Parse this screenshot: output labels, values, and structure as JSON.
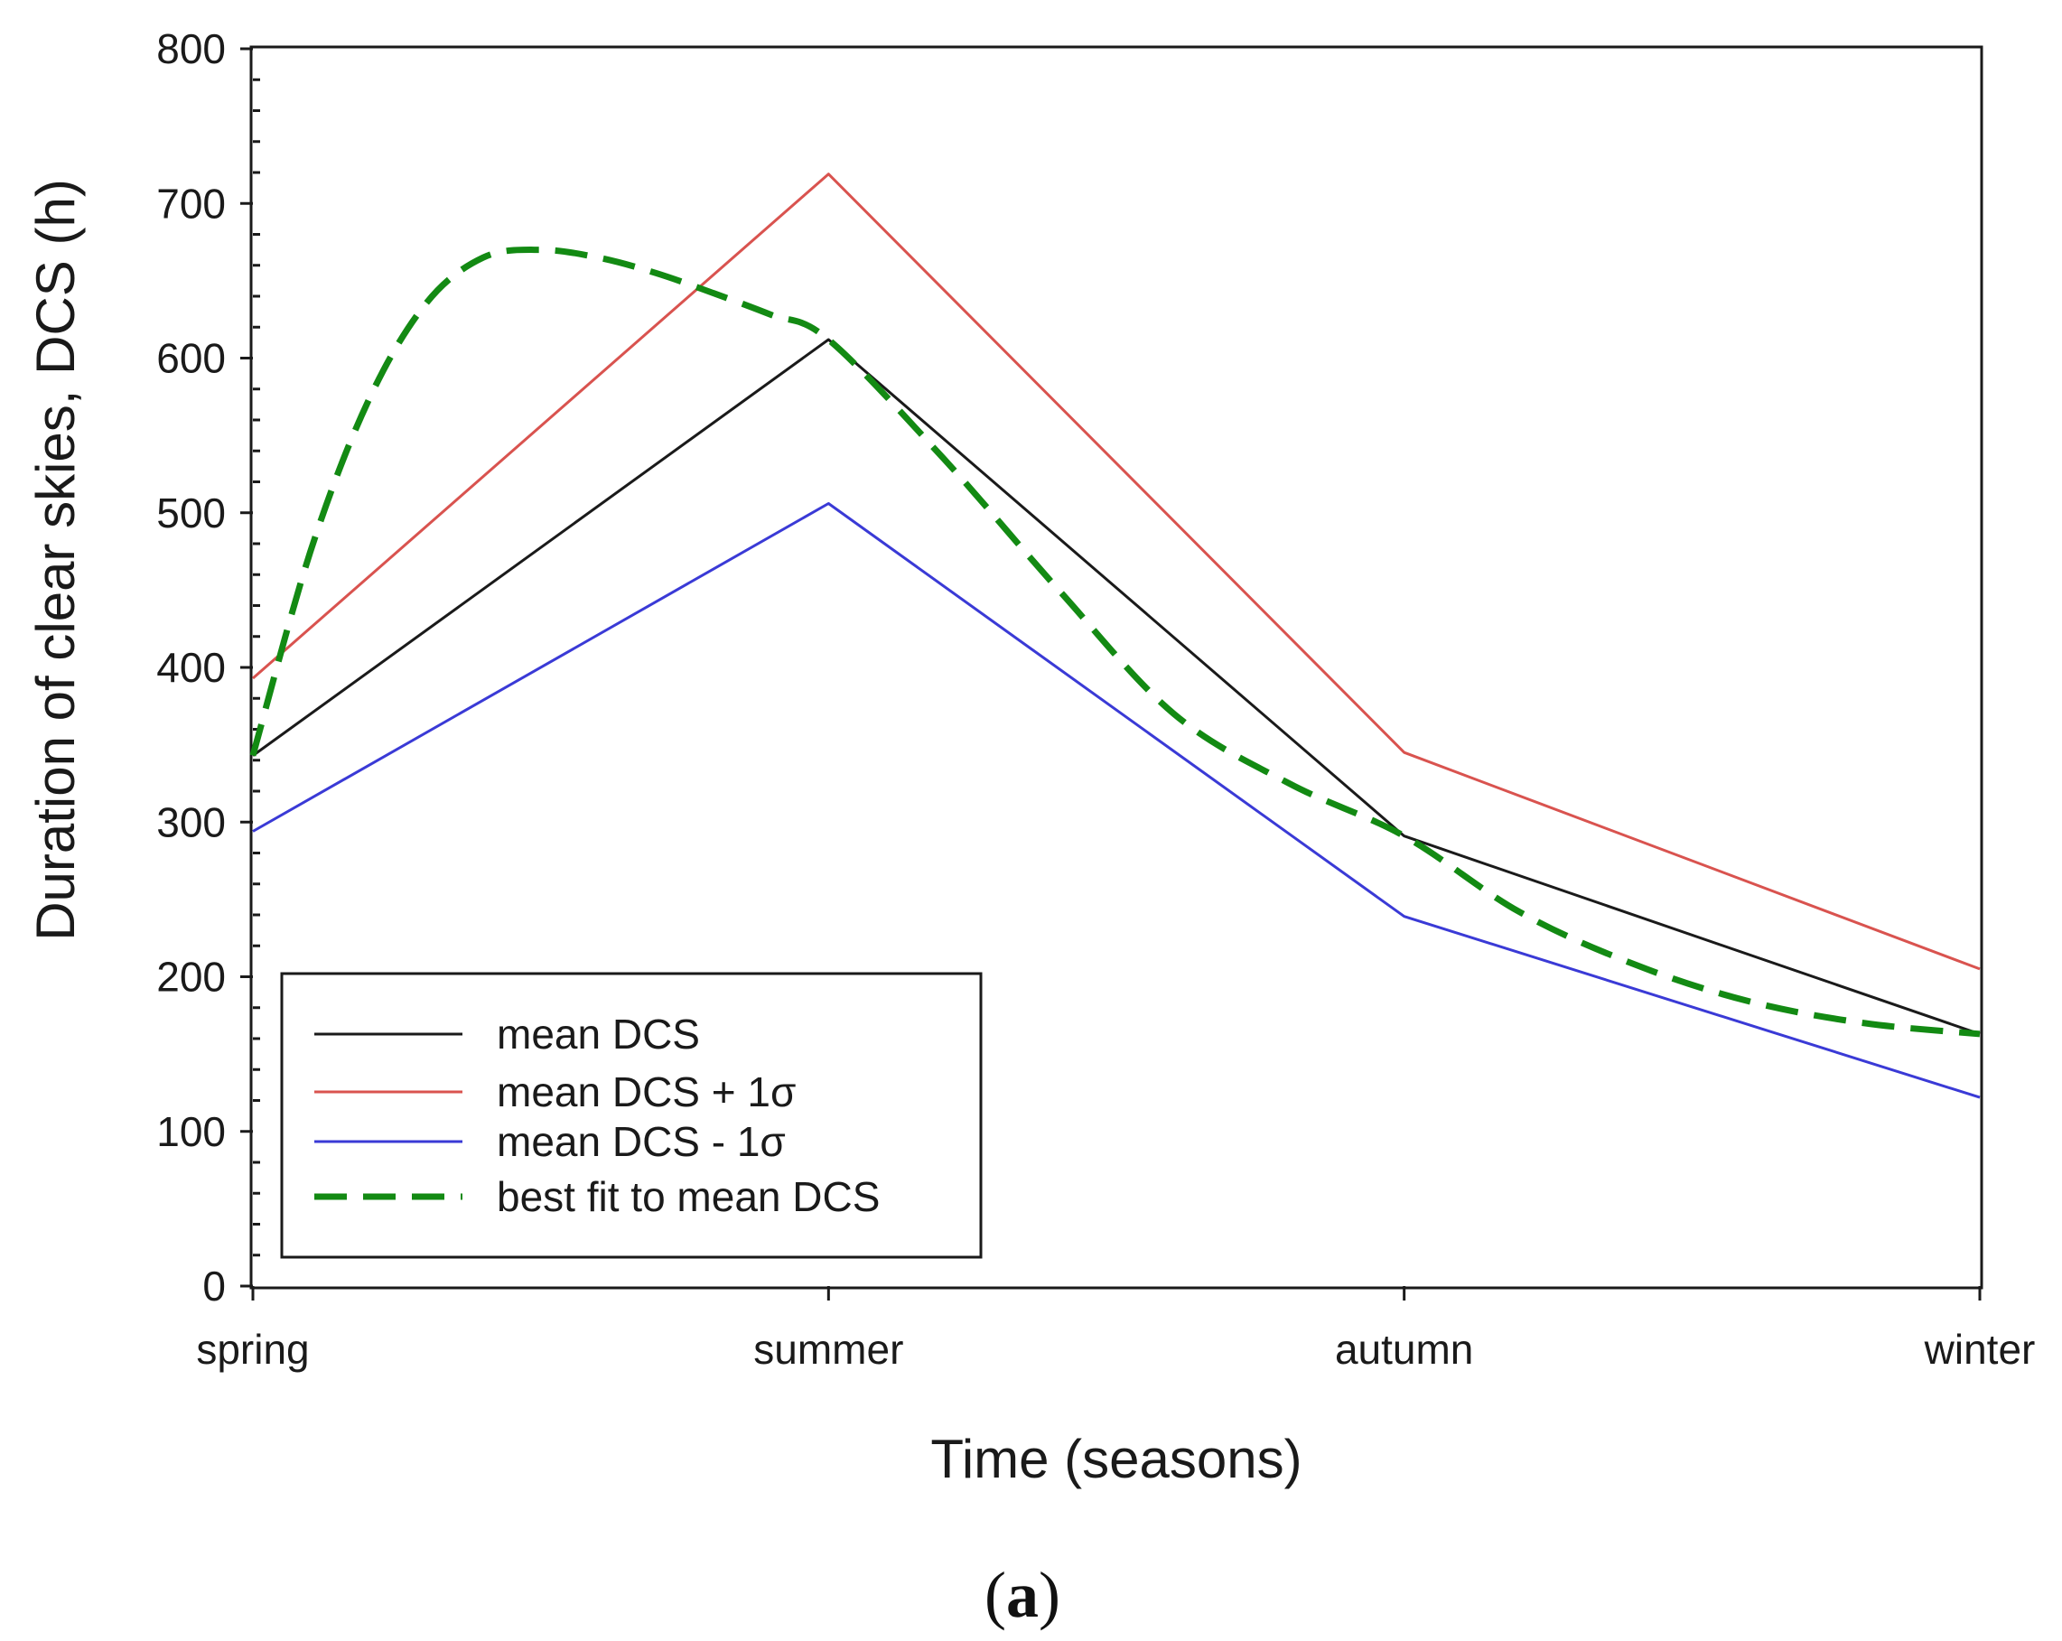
{
  "chart_data": {
    "type": "line",
    "title": "",
    "xlabel": "Time (seasons)",
    "ylabel": "Duration of clear skies, DCS (h)",
    "categories": [
      "spring",
      "summer",
      "autumn",
      "winter"
    ],
    "ylim": [
      0,
      800
    ],
    "yticks": [
      "0",
      "100",
      "200",
      "300",
      "400",
      "500",
      "600",
      "700",
      "800"
    ],
    "series": [
      {
        "name": "mean DCS",
        "color": "#1a1a1a",
        "style": "solid",
        "values": [
          343,
          612,
          291,
          163
        ]
      },
      {
        "name": "mean DCS + 1σ",
        "color": "#d9534f",
        "style": "solid",
        "values": [
          393,
          719,
          345,
          205
        ]
      },
      {
        "name": "mean DCS - 1σ",
        "color": "#3a3ad6",
        "style": "solid",
        "values": [
          294,
          506,
          239,
          122
        ]
      },
      {
        "name": "best fit to mean DCS",
        "color": "#138a13",
        "style": "dashed",
        "x": [
          0,
          0.1,
          0.2,
          0.3,
          0.4,
          0.5,
          0.6,
          0.7,
          0.8,
          0.9,
          1.0,
          1.2,
          1.4,
          1.6,
          1.8,
          2.0,
          2.2,
          2.4,
          2.6,
          2.8,
          3.0
        ],
        "values": [
          343,
          475,
          572,
          635,
          665,
          670,
          665,
          655,
          642,
          628,
          612,
          535,
          450,
          370,
          325,
          291,
          242,
          208,
          184,
          170,
          163
        ]
      }
    ],
    "legend_position": "bottom-left",
    "grid": false
  },
  "panel_label": {
    "open": "(",
    "letter": "a",
    "close": ")"
  }
}
